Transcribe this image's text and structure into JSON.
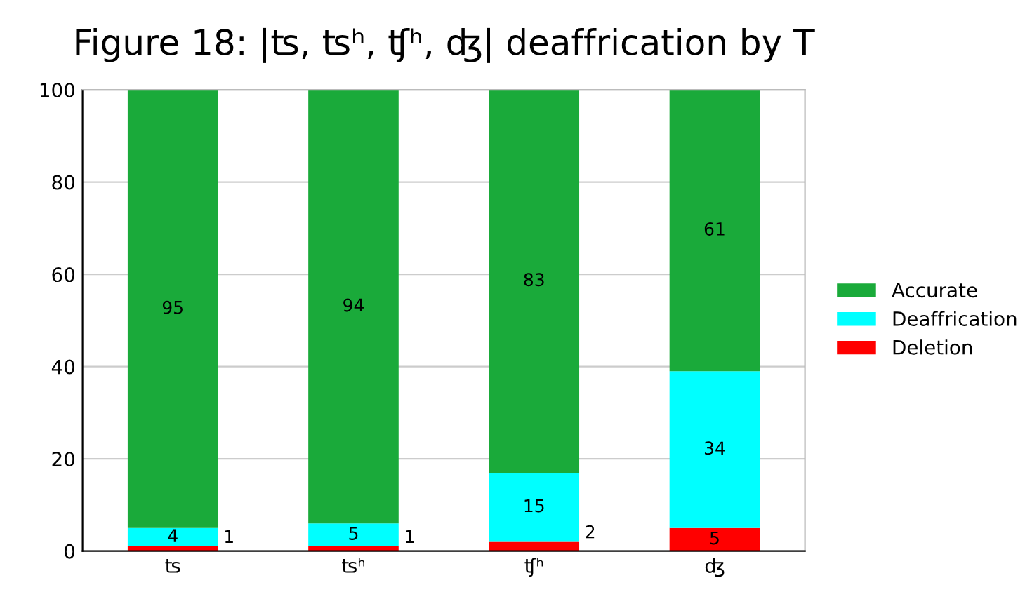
{
  "chart_data": {
    "type": "bar",
    "title": "Figure 18: |ʦ, ʦʰ, ʧʰ, ʤ| deaffrication by T",
    "categories": [
      "ʦ",
      "ʦʰ",
      "ʧʰ",
      "ʤ"
    ],
    "stacked": true,
    "series": [
      {
        "name": "Deletion",
        "color": "#ff0000",
        "values": [
          1,
          1,
          2,
          5
        ]
      },
      {
        "name": "Deaffrication",
        "color": "#00ffff",
        "values": [
          4,
          5,
          15,
          34
        ]
      },
      {
        "name": "Accurate",
        "color": "#1aaa3a",
        "values": [
          95,
          94,
          83,
          61
        ]
      }
    ],
    "ylim": [
      0,
      100
    ],
    "yticks": [
      0,
      20,
      40,
      60,
      80,
      100
    ],
    "grid": "y",
    "legend": "right",
    "data_labels": true
  }
}
